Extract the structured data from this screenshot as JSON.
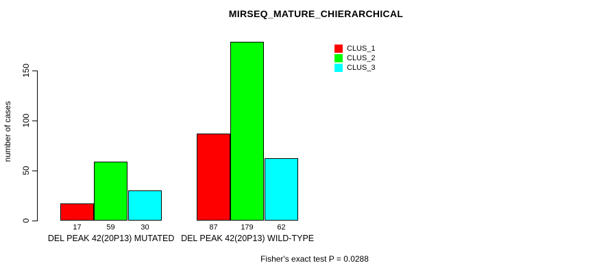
{
  "chart_data": {
    "type": "bar",
    "title": "MIRSEQ_MATURE_CHIERARCHICAL",
    "ylabel": "number of cases",
    "xlabel": "",
    "annotation": "Fisher's exact test P = 0.0288",
    "ylim": [
      0,
      150
    ],
    "yticks": [
      0,
      50,
      100,
      150
    ],
    "grid": false,
    "legend_position": "top-right",
    "bar_value_labels_shown": true,
    "categories": [
      "DEL PEAK 42(20P13) MUTATED",
      "DEL PEAK 42(20P13) WILD-TYPE"
    ],
    "series": [
      {
        "name": "CLUS_1",
        "color": "#FF0000",
        "values": [
          17,
          87
        ]
      },
      {
        "name": "CLUS_2",
        "color": "#00FF00",
        "values": [
          59,
          179
        ]
      },
      {
        "name": "CLUS_3",
        "color": "#00FFFF",
        "values": [
          30,
          62
        ]
      }
    ],
    "colors": {
      "background": "#FFFFFF",
      "axis": "#000000",
      "text": "#000000",
      "bar_border": "#000000"
    }
  }
}
